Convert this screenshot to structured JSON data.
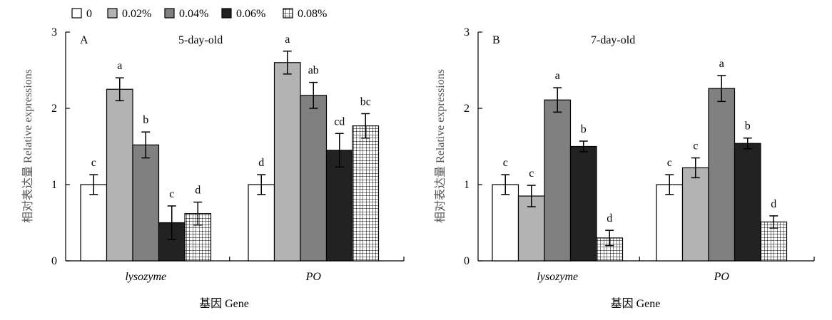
{
  "legend": {
    "entries": [
      {
        "name": "0",
        "fill": "#ffffff",
        "pattern": "none"
      },
      {
        "name": "0.02%",
        "fill": "#b3b3b3",
        "pattern": "none"
      },
      {
        "name": "0.04%",
        "fill": "#808080",
        "pattern": "none"
      },
      {
        "name": "0.06%",
        "fill": "#222222",
        "pattern": "none"
      },
      {
        "name": "0.08%",
        "fill": "#ffffff",
        "pattern": "grid"
      }
    ]
  },
  "chart_data": [
    {
      "type": "bar",
      "panel_label": "A",
      "title": "5-day-old",
      "xlabel": "基因 Gene",
      "ylabel": "相对表达量 Relative expressions",
      "ylim": [
        0,
        3
      ],
      "yticks": [
        "0",
        "1",
        "2",
        "3"
      ],
      "categories": [
        "lysozyme",
        "PO"
      ],
      "series": [
        {
          "name": "0",
          "values": [
            1.0,
            1.0
          ],
          "errors": [
            0.13,
            0.13
          ],
          "letters": [
            "c",
            "d"
          ]
        },
        {
          "name": "0.02%",
          "values": [
            2.25,
            2.6
          ],
          "errors": [
            0.15,
            0.15
          ],
          "letters": [
            "a",
            "a"
          ]
        },
        {
          "name": "0.04%",
          "values": [
            1.52,
            2.17
          ],
          "errors": [
            0.17,
            0.17
          ],
          "letters": [
            "b",
            "ab"
          ]
        },
        {
          "name": "0.06%",
          "values": [
            0.5,
            1.45
          ],
          "errors": [
            0.22,
            0.22
          ],
          "letters": [
            "c",
            "cd"
          ]
        },
        {
          "name": "0.08%",
          "values": [
            0.62,
            1.77
          ],
          "errors": [
            0.15,
            0.16
          ],
          "letters": [
            "d",
            "bc"
          ]
        }
      ]
    },
    {
      "type": "bar",
      "panel_label": "B",
      "title": "7-day-old",
      "xlabel": "基因 Gene",
      "ylabel": "相对表达量 Relative expressions",
      "ylim": [
        0,
        3
      ],
      "yticks": [
        "0",
        "1",
        "2",
        "3"
      ],
      "categories": [
        "lysozyme",
        "PO"
      ],
      "series": [
        {
          "name": "0",
          "values": [
            1.0,
            1.0
          ],
          "errors": [
            0.13,
            0.13
          ],
          "letters": [
            "c",
            "c"
          ]
        },
        {
          "name": "0.02%",
          "values": [
            0.85,
            1.22
          ],
          "errors": [
            0.14,
            0.13
          ],
          "letters": [
            "c",
            "c"
          ]
        },
        {
          "name": "0.04%",
          "values": [
            2.11,
            2.26
          ],
          "errors": [
            0.16,
            0.17
          ],
          "letters": [
            "a",
            "a"
          ]
        },
        {
          "name": "0.06%",
          "values": [
            1.5,
            1.54
          ],
          "errors": [
            0.07,
            0.07
          ],
          "letters": [
            "b",
            "b"
          ]
        },
        {
          "name": "0.08%",
          "values": [
            0.3,
            0.51
          ],
          "errors": [
            0.1,
            0.08
          ],
          "letters": [
            "d",
            "d"
          ]
        }
      ]
    }
  ]
}
